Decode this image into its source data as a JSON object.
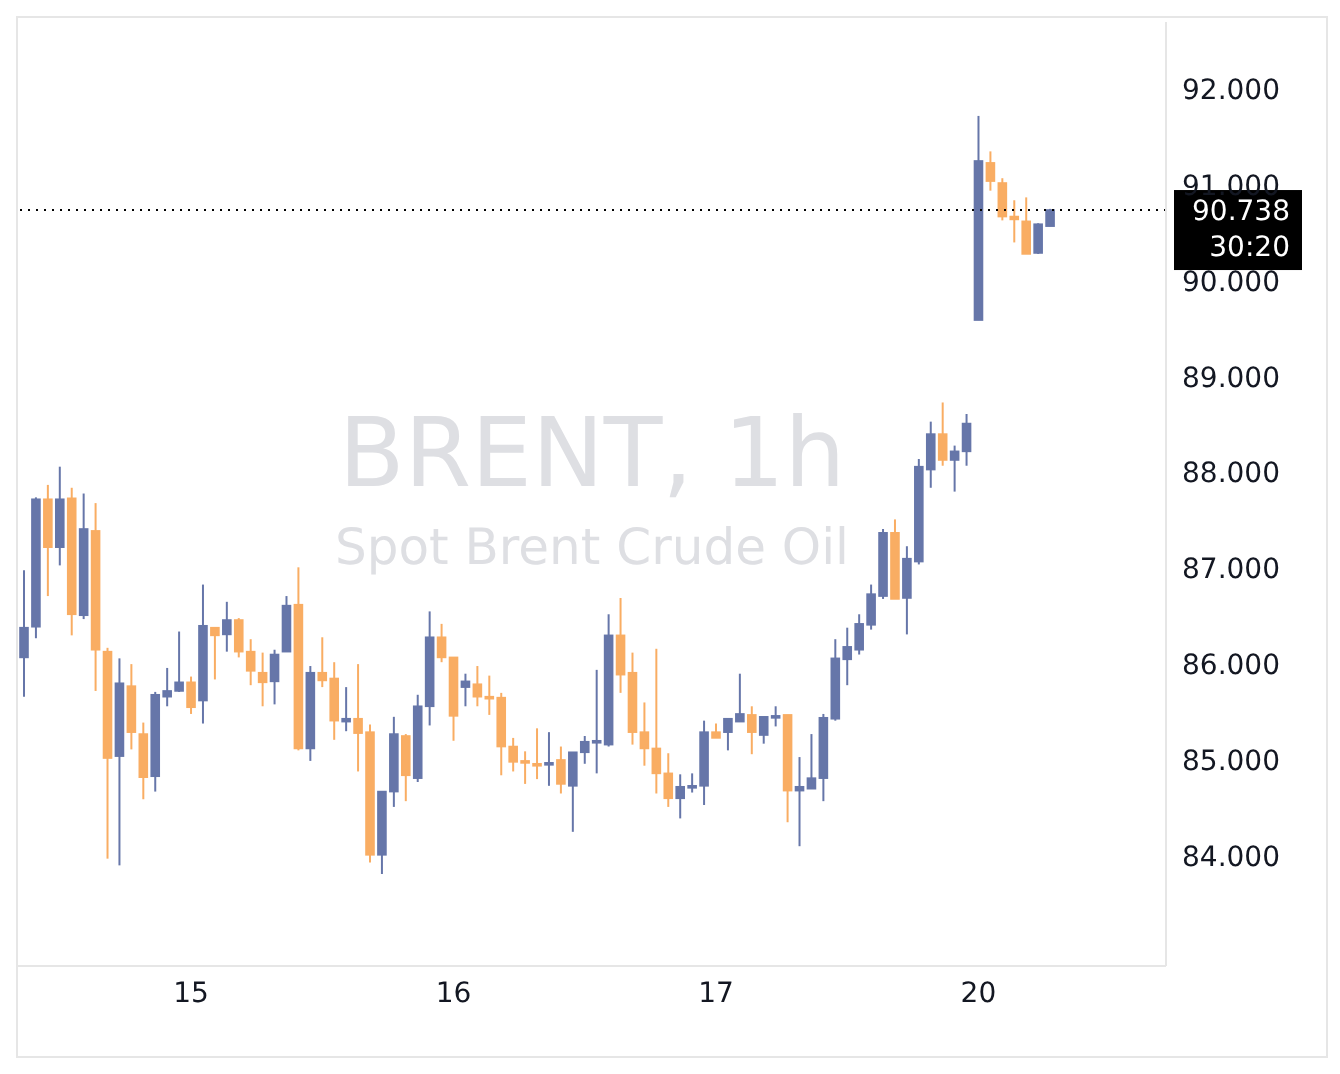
{
  "chart_data": {
    "type": "candlestick",
    "title": "BRENT, 1h",
    "subtitle": "Spot Brent Crude Oil",
    "categories": [
      null,
      null,
      null,
      null,
      null,
      null,
      null,
      null,
      null,
      null,
      null,
      null,
      null,
      null,
      "15",
      null,
      null,
      null,
      null,
      null,
      null,
      null,
      null,
      null,
      null,
      null,
      null,
      null,
      null,
      null,
      null,
      null,
      null,
      null,
      null,
      null,
      "16",
      null,
      null,
      null,
      null,
      null,
      null,
      null,
      null,
      null,
      null,
      null,
      null,
      null,
      null,
      null,
      null,
      null,
      null,
      null,
      null,
      null,
      "17",
      null,
      null,
      null,
      null,
      null,
      null,
      null,
      null,
      null,
      null,
      null,
      null,
      null,
      null,
      null,
      null,
      null,
      null,
      null,
      null,
      null,
      "20",
      null,
      null,
      null,
      null,
      null,
      null
    ],
    "colors": [
      "#6676a9",
      "#6676a9",
      "#f9ad63",
      "#6676a9",
      "#f9ad63",
      "#6676a9",
      "#f9ad63",
      "#f9ad63",
      "#6676a9",
      "#f9ad63",
      "#f9ad63",
      "#6676a9",
      "#6676a9",
      "#6676a9",
      "#f9ad63",
      "#6676a9",
      "#f9ad63",
      "#6676a9",
      "#f9ad63",
      "#f9ad63",
      "#f9ad63",
      "#6676a9",
      "#6676a9",
      "#f9ad63",
      "#6676a9",
      "#f9ad63",
      "#f9ad63",
      "#6676a9",
      "#f9ad63",
      "#f9ad63",
      "#6676a9",
      "#6676a9",
      "#f9ad63",
      "#6676a9",
      "#6676a9",
      "#f9ad63",
      "#f9ad63",
      "#6676a9",
      "#f9ad63",
      "#f9ad63",
      "#f9ad63",
      "#f9ad63",
      "#f9ad63",
      "#f9ad63",
      "#6676a9",
      "#f9ad63",
      "#6676a9",
      "#6676a9",
      "#6676a9",
      "#6676a9",
      "#f9ad63",
      "#f9ad63",
      "#f9ad63",
      "#f9ad63",
      "#f9ad63",
      "#6676a9",
      "#6676a9",
      "#6676a9",
      "#f9ad63",
      "#6676a9",
      "#6676a9",
      "#f9ad63",
      "#6676a9",
      "#6676a9",
      "#f9ad63",
      "#6676a9",
      "#6676a9",
      "#6676a9",
      "#6676a9",
      "#6676a9",
      "#6676a9",
      "#6676a9",
      "#6676a9",
      "#f9ad63",
      "#6676a9",
      "#6676a9",
      "#6676a9",
      "#f9ad63",
      "#6676a9",
      "#6676a9",
      "#6676a9",
      "#f9ad63",
      "#f9ad63",
      "#f9ad63",
      "#f9ad63",
      "#6676a9",
      "#6676a9"
    ],
    "ohlc": [
      [
        86.07,
        86.98,
        85.66,
        86.38
      ],
      [
        86.39,
        87.74,
        86.27,
        87.72
      ],
      [
        87.72,
        87.87,
        86.71,
        87.22
      ],
      [
        87.22,
        88.06,
        87.03,
        87.72
      ],
      [
        87.73,
        87.84,
        86.3,
        86.52
      ],
      [
        86.51,
        87.78,
        86.47,
        87.41
      ],
      [
        87.39,
        87.68,
        85.72,
        86.15
      ],
      [
        86.13,
        86.17,
        83.97,
        85.02
      ],
      [
        85.04,
        86.06,
        83.9,
        85.8
      ],
      [
        85.77,
        86.0,
        85.11,
        85.29
      ],
      [
        85.27,
        85.39,
        84.59,
        84.82
      ],
      [
        84.83,
        85.71,
        84.67,
        85.68
      ],
      [
        85.66,
        85.96,
        85.56,
        85.72
      ],
      [
        85.72,
        86.34,
        85.71,
        85.81
      ],
      [
        85.81,
        85.87,
        85.48,
        85.55
      ],
      [
        85.62,
        86.83,
        85.38,
        86.4
      ],
      [
        86.38,
        86.38,
        85.84,
        86.3
      ],
      [
        86.31,
        86.65,
        86.13,
        86.46
      ],
      [
        86.46,
        86.48,
        86.07,
        86.13
      ],
      [
        86.13,
        86.26,
        85.78,
        85.93
      ],
      [
        85.91,
        86.12,
        85.56,
        85.81
      ],
      [
        85.82,
        86.15,
        85.58,
        86.1
      ],
      [
        86.13,
        86.71,
        86.13,
        86.61
      ],
      [
        86.62,
        87.01,
        85.1,
        85.12
      ],
      [
        85.12,
        85.98,
        84.99,
        85.91
      ],
      [
        85.91,
        86.28,
        85.76,
        85.83
      ],
      [
        85.85,
        86.02,
        85.21,
        85.41
      ],
      [
        85.4,
        85.76,
        85.3,
        85.43
      ],
      [
        85.43,
        86.0,
        84.88,
        85.28
      ],
      [
        85.29,
        85.37,
        83.93,
        84.01
      ],
      [
        84.01,
        84.67,
        83.81,
        84.67
      ],
      [
        84.67,
        85.45,
        84.51,
        85.27
      ],
      [
        85.25,
        85.27,
        84.57,
        84.84
      ],
      [
        84.81,
        85.68,
        84.77,
        85.56
      ],
      [
        85.56,
        86.55,
        85.36,
        86.28
      ],
      [
        86.28,
        86.42,
        86.02,
        86.07
      ],
      [
        86.07,
        86.07,
        85.2,
        85.46
      ],
      [
        85.76,
        85.9,
        85.56,
        85.82
      ],
      [
        85.79,
        85.98,
        85.56,
        85.66
      ],
      [
        85.66,
        85.88,
        85.47,
        85.64
      ],
      [
        85.65,
        85.7,
        84.84,
        85.14
      ],
      [
        85.14,
        85.23,
        84.88,
        84.98
      ],
      [
        84.99,
        85.09,
        84.75,
        84.98
      ],
      [
        84.96,
        85.33,
        84.8,
        84.94
      ],
      [
        84.96,
        85.29,
        84.73,
        84.97
      ],
      [
        85.0,
        85.14,
        84.65,
        84.75
      ],
      [
        84.73,
        85.08,
        84.25,
        85.08
      ],
      [
        85.08,
        85.25,
        84.96,
        85.19
      ],
      [
        85.19,
        85.94,
        84.86,
        85.2
      ],
      [
        85.16,
        86.52,
        85.14,
        86.3
      ],
      [
        86.3,
        86.69,
        85.7,
        85.89
      ],
      [
        85.91,
        86.12,
        85.16,
        85.29
      ],
      [
        85.29,
        85.6,
        84.94,
        85.12
      ],
      [
        85.12,
        86.16,
        84.65,
        84.86
      ],
      [
        84.86,
        85.07,
        84.51,
        84.6
      ],
      [
        84.6,
        84.85,
        84.39,
        84.72
      ],
      [
        84.72,
        84.86,
        84.66,
        84.73
      ],
      [
        84.73,
        85.41,
        84.53,
        85.29
      ],
      [
        85.29,
        85.38,
        85.23,
        85.23
      ],
      [
        85.29,
        85.43,
        85.1,
        85.43
      ],
      [
        85.4,
        85.9,
        85.4,
        85.48
      ],
      [
        85.47,
        85.56,
        85.06,
        85.29
      ],
      [
        85.26,
        85.45,
        85.17,
        85.45
      ],
      [
        85.45,
        85.56,
        85.35,
        85.46
      ],
      [
        85.47,
        85.47,
        84.35,
        84.68
      ],
      [
        84.68,
        85.03,
        84.1,
        84.72
      ],
      [
        84.7,
        85.27,
        84.7,
        84.81
      ],
      [
        84.81,
        85.48,
        84.57,
        85.44
      ],
      [
        85.43,
        86.26,
        85.41,
        86.06
      ],
      [
        86.05,
        86.38,
        85.78,
        86.18
      ],
      [
        86.15,
        86.52,
        86.1,
        86.42
      ],
      [
        86.41,
        86.83,
        86.36,
        86.73
      ],
      [
        86.71,
        87.41,
        86.68,
        87.37
      ],
      [
        87.37,
        87.51,
        86.68,
        86.68
      ],
      [
        86.69,
        87.23,
        86.31,
        87.1
      ],
      [
        87.07,
        88.14,
        87.04,
        88.06
      ],
      [
        88.03,
        88.53,
        87.84,
        88.4
      ],
      [
        88.4,
        88.73,
        88.07,
        88.13
      ],
      [
        88.13,
        88.28,
        87.8,
        88.22
      ],
      [
        88.22,
        88.61,
        88.07,
        88.51
      ],
      [
        89.59,
        91.72,
        89.59,
        91.25
      ],
      [
        91.23,
        91.35,
        90.94,
        91.04
      ],
      [
        91.02,
        91.07,
        90.63,
        90.67
      ],
      [
        90.67,
        90.84,
        90.4,
        90.64
      ],
      [
        90.62,
        90.87,
        90.28,
        90.28
      ],
      [
        90.29,
        90.6,
        90.28,
        90.59
      ],
      [
        90.57,
        90.75,
        90.57,
        90.738
      ]
    ],
    "ylim": [
      82.85,
      92.7
    ],
    "yticks": [
      {
        "value": 84,
        "label": "84.000"
      },
      {
        "value": 85,
        "label": "85.000"
      },
      {
        "value": 86,
        "label": "86.000"
      },
      {
        "value": 87,
        "label": "87.000"
      },
      {
        "value": 88,
        "label": "88.000"
      },
      {
        "value": 89,
        "label": "89.000"
      },
      {
        "value": 90,
        "label": "90.000"
      },
      {
        "value": 91,
        "label": "91.000"
      },
      {
        "value": 92,
        "label": "92.000"
      }
    ],
    "grid": false,
    "ref_lines": [
      {
        "axis": "y",
        "value": 90.738,
        "label": "90.738",
        "color": "#000000",
        "line_style": "dotted"
      }
    ],
    "annotations": [
      "30:20"
    ]
  }
}
